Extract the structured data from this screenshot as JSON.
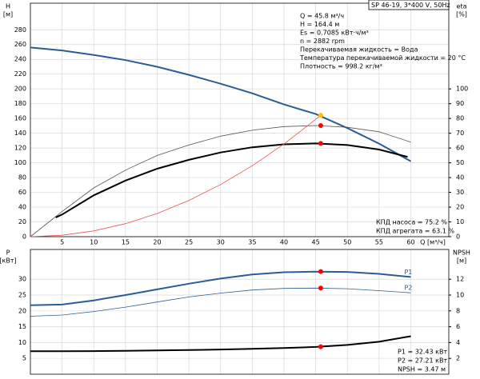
{
  "chart_data": [
    {
      "type": "line",
      "title": "SP 46-19, 3*400 V, 50Hz",
      "ylabel": [
        "H",
        "[м]"
      ],
      "y2label": [
        "eta",
        "[%]"
      ],
      "xlabel": "Q [м³/ч]",
      "info": [
        "Q = 45.8 м³/ч",
        "H = 164.4 м",
        "Es = 0.7085 кВт·ч/м³",
        "n = 2882 rpm",
        "Перекачиваемая жидкость = Вода",
        "Температура перекачиваемой жидкости = 20 °C",
        "Плотность = 998.2 кг/м³"
      ],
      "notes": [
        "КПД насоса = 75.2 %",
        "КПД агрегата = 63.1 %"
      ],
      "xlim": [
        0,
        66
      ],
      "xticks": [
        5,
        10,
        15,
        20,
        25,
        30,
        35,
        40,
        45,
        50,
        55,
        60
      ],
      "ylim": [
        0,
        316
      ],
      "yticks": [
        0,
        20,
        40,
        60,
        80,
        100,
        120,
        140,
        160,
        180,
        200,
        220,
        240,
        260,
        280
      ],
      "y2lim": [
        0,
        158
      ],
      "y2ticks": [
        0,
        10,
        20,
        30,
        40,
        50,
        60,
        70,
        80,
        90,
        100
      ],
      "grid": true,
      "x": [
        0,
        5,
        10,
        15,
        20,
        25,
        30,
        35,
        40,
        45,
        50,
        55,
        60
      ],
      "series": [
        {
          "color": "#2b5d95",
          "width": 2,
          "values": [
            256,
            252,
            246,
            239,
            230,
            219,
            207,
            194,
            179,
            166,
            147,
            126,
            102
          ]
        },
        {
          "color": "#555555",
          "width": 0.8,
          "axis": "y2",
          "values": [
            0,
            17,
            33,
            45,
            55,
            62,
            68,
            72,
            74.5,
            75.2,
            74,
            71,
            64
          ]
        },
        {
          "color": "#000000",
          "width": 2,
          "axis": "y2",
          "x": [
            4,
            5,
            10,
            15,
            20,
            25,
            30,
            35,
            40,
            45,
            50,
            55,
            59.5
          ],
          "values": [
            13,
            15,
            28,
            38,
            46,
            52,
            57,
            60.5,
            62.5,
            63.1,
            62,
            59,
            54
          ]
        },
        {
          "color": "#f05050",
          "width": 0.8,
          "x": [
            0,
            5,
            10,
            15,
            20,
            25,
            30,
            35,
            40,
            45,
            45.8
          ],
          "values": [
            0,
            2,
            7.8,
            17.6,
            31.4,
            49,
            70.6,
            96,
            125.4,
            158.8,
            164.4
          ]
        }
      ],
      "markers": [
        {
          "x": 45.8,
          "y": 164.4,
          "color": "#ffc000"
        },
        {
          "x": 45.8,
          "y": 75.2,
          "axis": "y2",
          "color": "#ff0000"
        },
        {
          "x": 45.8,
          "y": 63.1,
          "axis": "y2",
          "color": "#ff0000"
        }
      ]
    },
    {
      "type": "line",
      "ylabel": [
        "P",
        "[кВт]"
      ],
      "y2label": [
        "NPSH",
        "[м]"
      ],
      "notes": [
        "P1 = 32.43 кВт",
        "P2 = 27.21 кВт",
        "NPSH = 3.47 м"
      ],
      "xlim": [
        0,
        66
      ],
      "ylim": [
        0,
        39.4
      ],
      "yticks": [
        5,
        10,
        15,
        20,
        25,
        30
      ],
      "y2lim": [
        0,
        15.76
      ],
      "y2ticks": [
        2,
        4,
        6,
        8,
        10,
        12
      ],
      "grid": true,
      "x": [
        0,
        5,
        10,
        15,
        20,
        25,
        30,
        35,
        40,
        45,
        50,
        55,
        60
      ],
      "series": [
        {
          "name": "P1",
          "color": "#2b5d95",
          "width": 2,
          "values": [
            21.8,
            22,
            23.3,
            25,
            26.8,
            28.6,
            30.2,
            31.5,
            32.2,
            32.4,
            32.3,
            31.7,
            30.7
          ]
        },
        {
          "name": "P2",
          "color": "#2b5d95",
          "width": 0.8,
          "values": [
            18.3,
            18.7,
            19.8,
            21.2,
            22.8,
            24.4,
            25.6,
            26.6,
            27.1,
            27.2,
            27,
            26.4,
            25.7
          ]
        },
        {
          "color": "#000000",
          "width": 2,
          "axis": "y2",
          "values": [
            2.9,
            2.9,
            2.92,
            2.95,
            3,
            3.05,
            3.12,
            3.2,
            3.3,
            3.45,
            3.7,
            4.1,
            4.8
          ]
        }
      ],
      "markers": [
        {
          "x": 45.8,
          "y": 32.43,
          "color": "#ff0000"
        },
        {
          "x": 45.8,
          "y": 27.21,
          "color": "#ff0000"
        },
        {
          "x": 45.8,
          "y": 3.47,
          "axis": "y2",
          "color": "#ff0000"
        }
      ]
    }
  ]
}
